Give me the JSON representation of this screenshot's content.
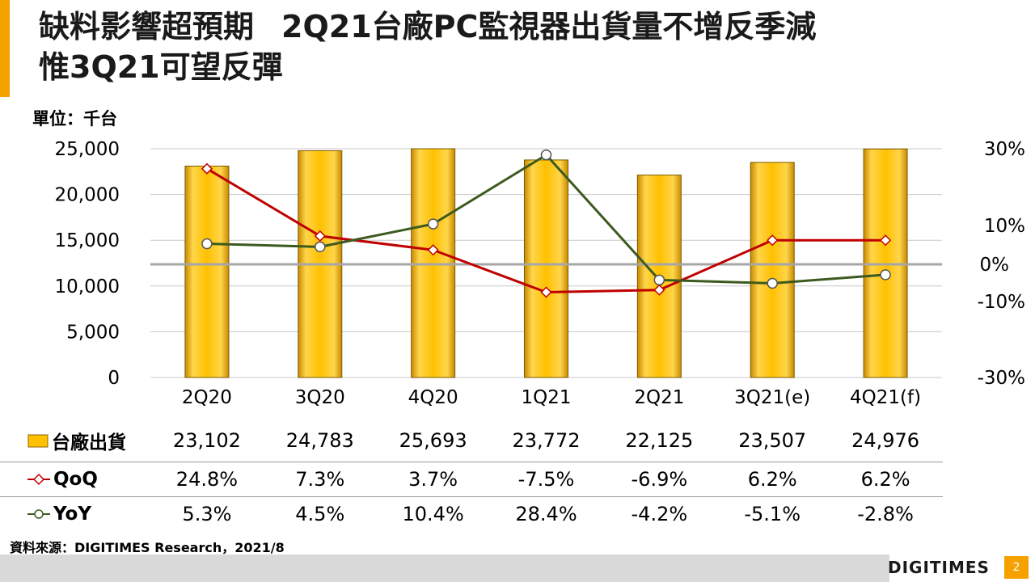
{
  "slide": {
    "title_line1_a": "缺料影響超預期",
    "title_line1_b": "2Q21台廠PC監視器出貨量不增反季減",
    "title_line2": "惟3Q21可望反彈",
    "unit": "單位：千台",
    "source": "資料來源：DIGITIMES Research，2021/8",
    "logo": "DIGITIMES",
    "page_number": "2"
  },
  "colors": {
    "bar": "#ffc000",
    "qoq": "#c00000",
    "yoy": "#3d5a1e",
    "zero_line": "#a6a6a6",
    "accent": "#f5a100"
  },
  "chart_data": {
    "type": "bar",
    "categories": [
      "2Q20",
      "3Q20",
      "4Q20",
      "1Q21",
      "2Q21",
      "3Q21(e)",
      "4Q21(f)"
    ],
    "left_axis": {
      "min": 0,
      "max": 25000,
      "ticks": [
        "0",
        "5,000",
        "10,000",
        "15,000",
        "20,000",
        "25,000"
      ]
    },
    "right_axis": {
      "min": -30,
      "max": 30,
      "unit": "%",
      "ticks": [
        {
          "value": -30,
          "label": "-30%"
        },
        {
          "value": -10,
          "label": "-10%"
        },
        {
          "value": 0,
          "label": "0%"
        },
        {
          "value": 10,
          "label": "10%"
        },
        {
          "value": 30,
          "label": "30%"
        }
      ]
    },
    "series": [
      {
        "name": "台廠出貨",
        "type": "bar",
        "axis": "left",
        "values": [
          23102,
          24783,
          25693,
          23772,
          22125,
          23507,
          24976
        ],
        "labels": [
          "23,102",
          "24,783",
          "25,693",
          "23,772",
          "22,125",
          "23,507",
          "24,976"
        ]
      },
      {
        "name": "QoQ",
        "type": "line",
        "axis": "right",
        "marker": "diamond",
        "values": [
          24.8,
          7.3,
          3.7,
          -7.5,
          -6.9,
          6.2,
          6.2
        ],
        "labels": [
          "24.8%",
          "7.3%",
          "3.7%",
          "-7.5%",
          "-6.9%",
          "6.2%",
          "6.2%"
        ]
      },
      {
        "name": "YoY",
        "type": "line",
        "axis": "right",
        "marker": "circle",
        "values": [
          5.3,
          4.5,
          10.4,
          28.4,
          -4.2,
          -5.1,
          -2.8
        ],
        "labels": [
          "5.3%",
          "4.5%",
          "10.4%",
          "28.4%",
          "-4.2%",
          "-5.1%",
          "-2.8%"
        ]
      }
    ]
  }
}
